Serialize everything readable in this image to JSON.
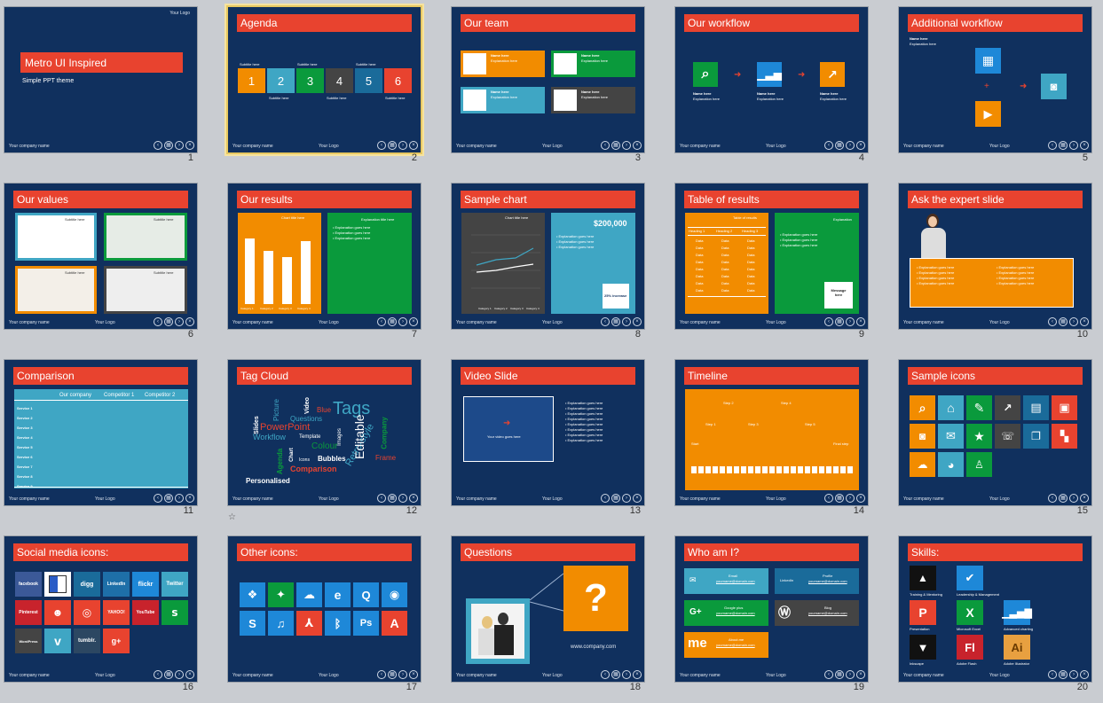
{
  "slides": [
    {
      "number": "1",
      "title": "Metro UI Inspired",
      "subtitle": "Simple PPT theme",
      "company": "Your company name",
      "logo": "Your Logo"
    },
    {
      "number": "2",
      "title": "Agenda",
      "company": "Your company name",
      "logo": "Your Logo",
      "subtitle": "Subtitle here",
      "items": [
        "1",
        "2",
        "3",
        "4",
        "5",
        "6"
      ]
    },
    {
      "number": "3",
      "title": "Our team",
      "company": "Your company name",
      "logo": "Your Logo",
      "name": "Name here",
      "expl": "Explanation here"
    },
    {
      "number": "4",
      "title": "Our workflow",
      "company": "Your company name",
      "logo": "Your Logo",
      "name": "Name here",
      "expl": "Explanation here"
    },
    {
      "number": "5",
      "title": "Additional workflow",
      "company": "Your company name",
      "logo": "Your Logo",
      "name": "Name here",
      "expl": "Explanation here"
    },
    {
      "number": "6",
      "title": "Our values",
      "company": "Your company name",
      "logo": "Your Logo",
      "subtitle": "Subtitle here"
    },
    {
      "number": "7",
      "title": "Our results",
      "company": "Your company name",
      "logo": "Your Logo",
      "chart_title": "Chart title here",
      "expl_title": "Explanation title here",
      "expl": "Explanation goes here",
      "cat": [
        "Category 1",
        "Category 2",
        "Category 3",
        "Category 4"
      ]
    },
    {
      "number": "8",
      "title": "Sample chart",
      "company": "Your company name",
      "logo": "Your Logo",
      "chart_title": "Chart title here",
      "amount": "$200,000",
      "expl": "Explanation goes here",
      "badge": "25% increase",
      "cat": [
        "Category 1",
        "Category 2",
        "Category 3",
        "Category 4"
      ]
    },
    {
      "number": "9",
      "title": "Table of results",
      "company": "Your company name",
      "logo": "Your Logo",
      "table_title": "Table of results",
      "headings": [
        "Heading 1",
        "Heading 2",
        "Heading 3"
      ],
      "cell": "Data",
      "expl_title": "Explanation",
      "expl": "Explanation goes here",
      "message": "Message here"
    },
    {
      "number": "10",
      "title": "Ask the expert slide",
      "company": "Your company name",
      "logo": "Your Logo",
      "expl": "Explanation goes here"
    },
    {
      "number": "11",
      "title": "Comparison",
      "company": "Your company name",
      "logo": "Your Logo",
      "cols": [
        "Our company",
        "Competitor 1",
        "Competitor 2"
      ],
      "rows": [
        "Service 1",
        "Service 2",
        "Service 3",
        "Service 4",
        "Service 5",
        "Service 6",
        "Service 7",
        "Service 8",
        "Service 9"
      ]
    },
    {
      "number": "12",
      "title": "Tag Cloud",
      "company": "Your company name",
      "logo": "Your Logo",
      "tags": [
        "Tags",
        "Slides",
        "Picture",
        "Video",
        "Blue",
        "Questions",
        "PowerPoint",
        "Workflow",
        "Template",
        "Images",
        "Retro-style",
        "Company",
        "Colour",
        "Agenda",
        "Chart",
        "Icons",
        "Bubbles",
        "Editable",
        "Frame",
        "Comparison",
        "Personalised"
      ]
    },
    {
      "number": "13",
      "title": "Video Slide",
      "company": "Your company name",
      "logo": "Your Logo",
      "video": "Your video goes here",
      "expl": "Explanation goes here"
    },
    {
      "number": "14",
      "title": "Timeline",
      "company": "Your company name",
      "logo": "Your Logo",
      "steps": [
        "Start",
        "Step 1",
        "Step 2",
        "Step 3",
        "Step 4",
        "Step 5",
        "Final step"
      ]
    },
    {
      "number": "15",
      "title": "Sample icons",
      "company": "Your company name",
      "logo": "Your Logo"
    },
    {
      "number": "16",
      "title": "Social media icons:",
      "company": "Your company name",
      "logo": "Your Logo",
      "icons": [
        "facebook",
        "",
        "digg",
        "LinkedIn",
        "flickr",
        "Twitter",
        "Pinterest",
        "",
        "",
        "YAHOO!",
        "YouTube",
        "",
        "WordPress",
        "",
        "tumblr.",
        "g+"
      ]
    },
    {
      "number": "17",
      "title": "Other icons:",
      "company": "Your company name",
      "logo": "Your Logo"
    },
    {
      "number": "18",
      "title": "Questions",
      "company": "Your company name",
      "logo": "Your Logo",
      "qmark": "?",
      "url": "www.company.com"
    },
    {
      "number": "19",
      "title": "Who am I?",
      "company": "Your company name",
      "logo": "Your Logo",
      "blocks": [
        "Email",
        "Profile",
        "Google plus",
        "Blog",
        "About.me"
      ],
      "link": "yourname@domain.com"
    },
    {
      "number": "20",
      "title": "Skills:",
      "company": "Your company name",
      "logo": "Your Logo",
      "skills": [
        "Training & Mentoring",
        "Leadership & Management",
        "Presentation",
        "Microsoft Excel",
        "Advanced charting",
        "Inkscape",
        "Adobe Flash",
        "Adobe Illustrator"
      ]
    }
  ],
  "colors": {
    "bg": "#10305e",
    "red": "#e8432f",
    "orange": "#f28c00",
    "green": "#0a9a3c",
    "teal": "#3fa6c4",
    "blue": "#1e88d8",
    "dark": "#444444"
  }
}
